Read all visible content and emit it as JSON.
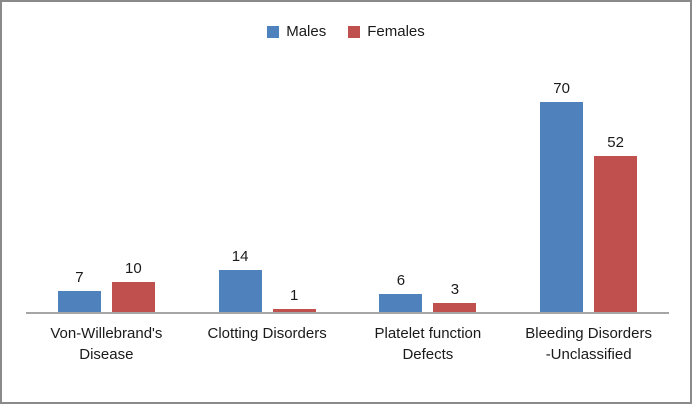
{
  "frame": {
    "background": "#ffffff",
    "border_color": "#8a8a8a"
  },
  "legend": {
    "position": "top-center",
    "items": [
      {
        "label": "Males",
        "color": "#4f81bd"
      },
      {
        "label": "Females",
        "color": "#c0504d"
      }
    ]
  },
  "chart_data": {
    "type": "bar",
    "title": "",
    "xlabel": "",
    "ylabel": "",
    "categories": [
      "Von-Willebrand's\nDisease",
      "Clotting Disorders",
      "Platelet function\nDefects",
      "Bleeding Disorders\n-Unclassified"
    ],
    "series": [
      {
        "name": "Males",
        "color": "#4f81bd",
        "values": [
          7,
          14,
          6,
          70
        ]
      },
      {
        "name": "Females",
        "color": "#c0504d",
        "values": [
          10,
          1,
          3,
          52
        ]
      }
    ],
    "data_labels": true,
    "ylim": [
      0,
      80
    ],
    "grid": false,
    "legend_position": "top",
    "axis_line_color": "#a6a6a6",
    "text_color": "#1a1a1a"
  }
}
